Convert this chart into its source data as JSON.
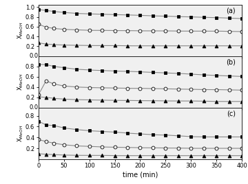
{
  "time_points": [
    0,
    15,
    30,
    50,
    75,
    100,
    125,
    150,
    175,
    200,
    225,
    250,
    275,
    300,
    325,
    350,
    375,
    400
  ],
  "panels": [
    {
      "label": "(a)",
      "series": [
        {
          "marker": "s",
          "filled": true,
          "y_data": [
            0.95,
            0.93,
            0.91,
            0.89,
            0.87,
            0.86,
            0.855,
            0.845,
            0.84,
            0.83,
            0.82,
            0.815,
            0.805,
            0.8,
            0.79,
            0.785,
            0.775,
            0.765
          ]
        },
        {
          "marker": "o",
          "filled": false,
          "y_data": [
            0.65,
            0.59,
            0.565,
            0.545,
            0.535,
            0.525,
            0.525,
            0.52,
            0.52,
            0.515,
            0.515,
            0.515,
            0.51,
            0.51,
            0.51,
            0.51,
            0.505,
            0.5
          ]
        },
        {
          "marker": "^",
          "filled": true,
          "y_data": [
            0.27,
            0.245,
            0.235,
            0.225,
            0.22,
            0.215,
            0.215,
            0.215,
            0.21,
            0.21,
            0.21,
            0.21,
            0.21,
            0.21,
            0.21,
            0.21,
            0.21,
            0.21
          ]
        }
      ],
      "ylim": [
        0.0,
        1.05
      ],
      "yticks": [
        0.2,
        0.4,
        0.6,
        0.8,
        1.0
      ],
      "ymax_line": 1.0
    },
    {
      "label": "(b)",
      "series": [
        {
          "marker": "s",
          "filled": true,
          "y_data": [
            0.84,
            0.835,
            0.8,
            0.775,
            0.745,
            0.73,
            0.72,
            0.71,
            0.705,
            0.695,
            0.685,
            0.675,
            0.665,
            0.65,
            0.635,
            0.625,
            0.615,
            0.605
          ]
        },
        {
          "marker": "o",
          "filled": false,
          "y_data": [
            0.25,
            0.52,
            0.46,
            0.42,
            0.4,
            0.39,
            0.385,
            0.38,
            0.375,
            0.375,
            0.37,
            0.365,
            0.36,
            0.355,
            0.35,
            0.35,
            0.345,
            0.34
          ]
        },
        {
          "marker": "^",
          "filled": true,
          "y_data": [
            0.21,
            0.2,
            0.18,
            0.165,
            0.155,
            0.15,
            0.145,
            0.14,
            0.14,
            0.135,
            0.135,
            0.13,
            0.13,
            0.13,
            0.125,
            0.12,
            0.12,
            0.12
          ]
        }
      ],
      "ylim": [
        0.0,
        1.0
      ],
      "yticks": [
        0.2,
        0.4,
        0.6,
        0.8
      ],
      "ymax_line": 1.0
    },
    {
      "label": "(c)",
      "series": [
        {
          "marker": "s",
          "filled": true,
          "y_data": [
            0.7,
            0.63,
            0.62,
            0.575,
            0.545,
            0.525,
            0.51,
            0.5,
            0.48,
            0.465,
            0.45,
            0.445,
            0.43,
            0.415,
            0.41,
            0.41,
            0.41,
            0.41
          ]
        },
        {
          "marker": "o",
          "filled": false,
          "y_data": [
            0.36,
            0.325,
            0.295,
            0.265,
            0.245,
            0.235,
            0.225,
            0.22,
            0.215,
            0.21,
            0.21,
            0.205,
            0.205,
            0.2,
            0.2,
            0.2,
            0.2,
            0.2
          ]
        },
        {
          "marker": "^",
          "filled": true,
          "y_data": [
            0.1,
            0.09,
            0.085,
            0.075,
            0.07,
            0.07,
            0.07,
            0.065,
            0.065,
            0.065,
            0.065,
            0.065,
            0.065,
            0.065,
            0.065,
            0.065,
            0.065,
            0.065
          ]
        }
      ],
      "ylim": [
        0.0,
        0.95
      ],
      "yticks": [
        0.2,
        0.4,
        0.6,
        0.8
      ],
      "ymax_line": 0.9
    }
  ],
  "xlabel": "time (min)",
  "ylabel": "X$_{MeOH}$",
  "xlim": [
    0,
    400
  ],
  "xticks": [
    0,
    50,
    100,
    150,
    200,
    250,
    300,
    350,
    400
  ],
  "marker_size": 3.5,
  "line_color": "#888888",
  "marker_color_filled": "black",
  "marker_color_open": "white",
  "marker_edge_color": "black",
  "bg_color": "#f0f0f0"
}
